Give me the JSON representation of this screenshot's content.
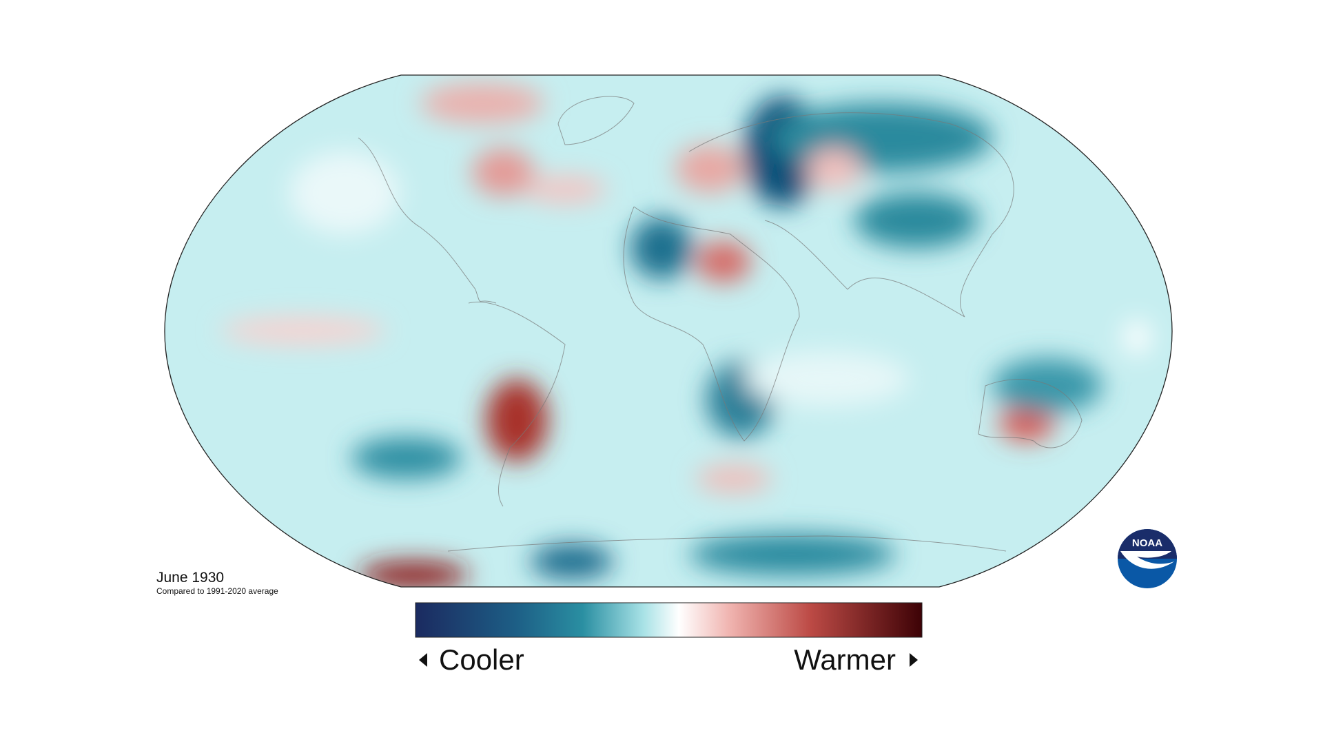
{
  "caption": {
    "title": "June 1930",
    "subtitle": "Compared to 1991-2020 average"
  },
  "legend": {
    "low_label": "Cooler",
    "high_label": "Warmer"
  },
  "logo": {
    "text": "NOAA"
  }
}
